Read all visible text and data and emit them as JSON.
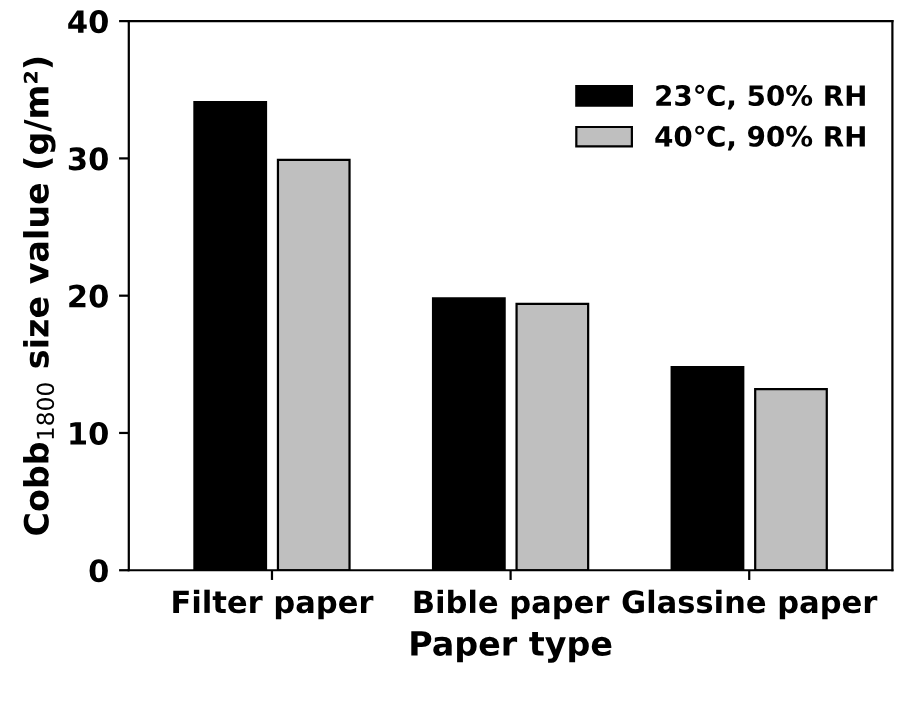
{
  "chart_data": {
    "type": "bar",
    "xlabel": "Paper type",
    "ylabel": "Cobb$_{1800}$ size value (g/m²)",
    "categories": [
      "Filter paper",
      "Bible paper",
      "Glassine paper"
    ],
    "series": [
      {
        "name": "23℃, 50% RH",
        "color": "#000000",
        "values": [
          34.1,
          19.8,
          14.8
        ]
      },
      {
        "name": "40℃, 90% RH",
        "color": "#bfbfbf",
        "values": [
          29.9,
          19.4,
          13.2
        ]
      }
    ],
    "ylim": [
      0,
      40
    ],
    "yticks": [
      0,
      10,
      20,
      30,
      40
    ],
    "grid": false,
    "legend": "top right"
  }
}
